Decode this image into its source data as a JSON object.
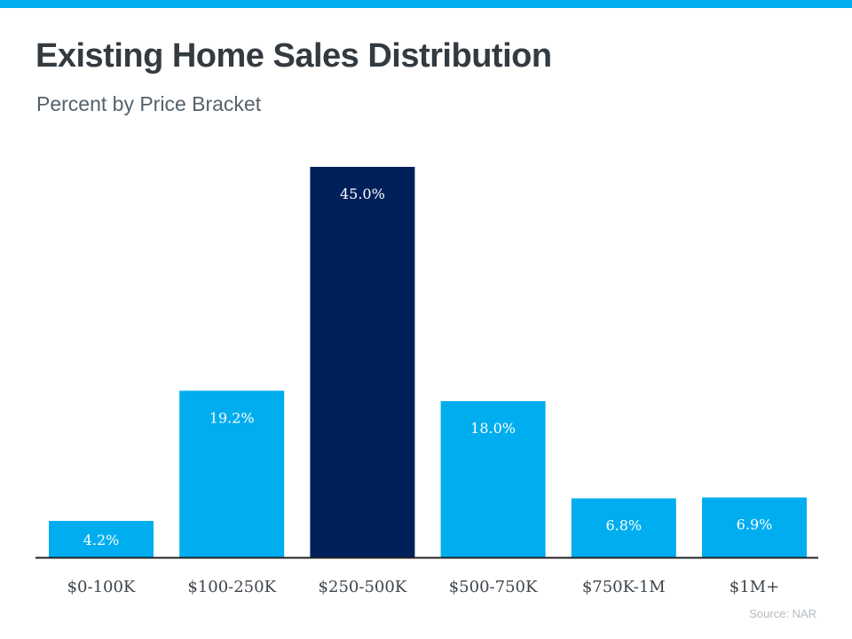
{
  "header": {
    "title": "Existing Home Sales Distribution",
    "subtitle": "Percent by Price Bracket"
  },
  "footer": {
    "source": "Source: NAR"
  },
  "colors": {
    "accent_bar": "#00adee",
    "bar_default": "#00adee",
    "bar_highlight": "#00205b",
    "baseline": "#222222"
  },
  "chart_data": {
    "type": "bar",
    "title": "Existing Home Sales Distribution",
    "subtitle": "Percent by Price Bracket",
    "categories": [
      "$0-100K",
      "$100-250K",
      "$250-500K",
      "$500-750K",
      "$750K-1M",
      "$1M+"
    ],
    "values": [
      4.2,
      19.2,
      45.0,
      18.0,
      6.8,
      6.9
    ],
    "value_labels": [
      "4.2%",
      "19.2%",
      "45.0%",
      "18.0%",
      "6.8%",
      "6.9%"
    ],
    "highlight_index": 2,
    "xlabel": "",
    "ylabel": "",
    "ylim": [
      0,
      45
    ],
    "grid": false,
    "legend": "none"
  }
}
